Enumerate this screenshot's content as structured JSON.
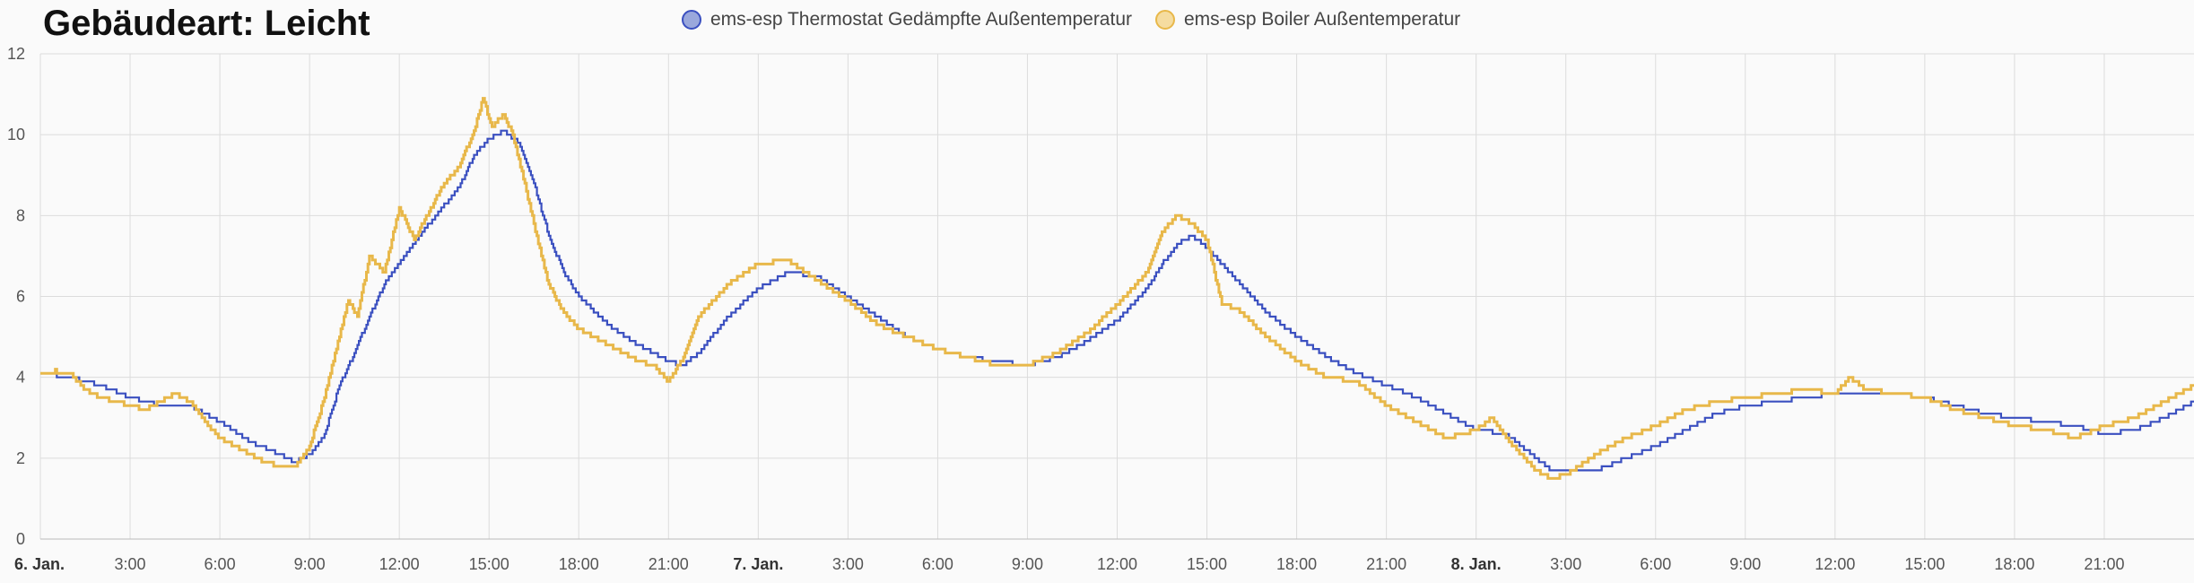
{
  "chart_data": {
    "type": "line",
    "title": "Gebäudeart: Leicht",
    "ylim": [
      0,
      12
    ],
    "y_ticks": [
      "0",
      "2",
      "4",
      "6",
      "8",
      "10",
      "12"
    ],
    "x_range_hours": [
      0,
      72
    ],
    "x_ticks": [
      {
        "hour": 0,
        "label": "6. Jan.",
        "bold": true
      },
      {
        "hour": 3,
        "label": "3:00"
      },
      {
        "hour": 6,
        "label": "6:00"
      },
      {
        "hour": 9,
        "label": "9:00"
      },
      {
        "hour": 12,
        "label": "12:00"
      },
      {
        "hour": 15,
        "label": "15:00"
      },
      {
        "hour": 18,
        "label": "18:00"
      },
      {
        "hour": 21,
        "label": "21:00"
      },
      {
        "hour": 24,
        "label": "7. Jan.",
        "bold": true
      },
      {
        "hour": 27,
        "label": "3:00"
      },
      {
        "hour": 30,
        "label": "6:00"
      },
      {
        "hour": 33,
        "label": "9:00"
      },
      {
        "hour": 36,
        "label": "12:00"
      },
      {
        "hour": 39,
        "label": "15:00"
      },
      {
        "hour": 42,
        "label": "18:00"
      },
      {
        "hour": 45,
        "label": "21:00"
      },
      {
        "hour": 48,
        "label": "8. Jan.",
        "bold": true
      },
      {
        "hour": 51,
        "label": "3:00"
      },
      {
        "hour": 54,
        "label": "6:00"
      },
      {
        "hour": 57,
        "label": "9:00"
      },
      {
        "hour": 60,
        "label": "12:00"
      },
      {
        "hour": 63,
        "label": "15:00"
      },
      {
        "hour": 66,
        "label": "18:00"
      },
      {
        "hour": 69,
        "label": "21:00"
      }
    ],
    "grid": true,
    "legend_position": "top-center",
    "series": [
      {
        "name": "ems-esp Thermostat Gedämpfte Außentemperatur",
        "color": "#3a4fc0",
        "fill": "#9aa8dc",
        "points": [
          [
            0,
            4.1
          ],
          [
            1,
            4.0
          ],
          [
            2,
            3.8
          ],
          [
            3,
            3.5
          ],
          [
            4,
            3.3
          ],
          [
            5,
            3.3
          ],
          [
            6,
            2.9
          ],
          [
            7,
            2.4
          ],
          [
            8,
            2.1
          ],
          [
            8.5,
            1.9
          ],
          [
            9,
            2.1
          ],
          [
            9.5,
            2.6
          ],
          [
            10,
            3.8
          ],
          [
            10.5,
            4.6
          ],
          [
            11,
            5.5
          ],
          [
            11.5,
            6.3
          ],
          [
            12,
            6.8
          ],
          [
            13,
            7.8
          ],
          [
            14,
            8.7
          ],
          [
            14.5,
            9.5
          ],
          [
            15,
            9.9
          ],
          [
            15.5,
            10.1
          ],
          [
            16,
            9.8
          ],
          [
            16.5,
            8.8
          ],
          [
            17,
            7.5
          ],
          [
            17.5,
            6.6
          ],
          [
            18,
            6.0
          ],
          [
            19,
            5.3
          ],
          [
            20,
            4.8
          ],
          [
            21,
            4.4
          ],
          [
            21.5,
            4.3
          ],
          [
            22,
            4.6
          ],
          [
            23,
            5.5
          ],
          [
            24,
            6.2
          ],
          [
            25,
            6.6
          ],
          [
            26,
            6.5
          ],
          [
            27,
            6.0
          ],
          [
            28,
            5.5
          ],
          [
            29,
            5.0
          ],
          [
            30,
            4.7
          ],
          [
            31,
            4.5
          ],
          [
            32,
            4.4
          ],
          [
            33,
            4.3
          ],
          [
            34,
            4.5
          ],
          [
            35,
            4.9
          ],
          [
            36,
            5.4
          ],
          [
            37,
            6.2
          ],
          [
            37.5,
            6.8
          ],
          [
            38,
            7.3
          ],
          [
            38.5,
            7.5
          ],
          [
            39,
            7.2
          ],
          [
            40,
            6.4
          ],
          [
            41,
            5.6
          ],
          [
            42,
            5.0
          ],
          [
            43,
            4.5
          ],
          [
            44,
            4.1
          ],
          [
            45,
            3.8
          ],
          [
            46,
            3.5
          ],
          [
            47,
            3.1
          ],
          [
            48,
            2.7
          ],
          [
            49,
            2.6
          ],
          [
            50,
            2.0
          ],
          [
            50.5,
            1.7
          ],
          [
            52,
            1.7
          ],
          [
            53,
            2.0
          ],
          [
            54,
            2.3
          ],
          [
            55,
            2.7
          ],
          [
            56,
            3.1
          ],
          [
            57,
            3.3
          ],
          [
            58,
            3.4
          ],
          [
            59,
            3.5
          ],
          [
            60,
            3.6
          ],
          [
            61,
            3.6
          ],
          [
            62,
            3.6
          ],
          [
            63,
            3.5
          ],
          [
            64,
            3.3
          ],
          [
            65,
            3.1
          ],
          [
            66,
            3.0
          ],
          [
            67,
            2.9
          ],
          [
            68,
            2.8
          ],
          [
            69,
            2.6
          ],
          [
            70,
            2.7
          ],
          [
            71,
            3.0
          ],
          [
            72,
            3.4
          ]
        ]
      },
      {
        "name": "ems-esp Boiler Außentemperatur",
        "color": "#e8b84a",
        "fill": "#f5dca0",
        "points": [
          [
            0,
            4.1
          ],
          [
            0.5,
            4.15
          ],
          [
            1,
            4.1
          ],
          [
            1.5,
            3.7
          ],
          [
            2,
            3.5
          ],
          [
            3,
            3.3
          ],
          [
            3.5,
            3.2
          ],
          [
            4,
            3.4
          ],
          [
            4.5,
            3.6
          ],
          [
            5,
            3.4
          ],
          [
            5.5,
            2.9
          ],
          [
            6,
            2.5
          ],
          [
            7,
            2.1
          ],
          [
            7.5,
            1.9
          ],
          [
            8,
            1.8
          ],
          [
            8.5,
            1.8
          ],
          [
            9,
            2.3
          ],
          [
            9.5,
            3.5
          ],
          [
            10,
            5.0
          ],
          [
            10.3,
            5.9
          ],
          [
            10.6,
            5.5
          ],
          [
            11,
            7.0
          ],
          [
            11.5,
            6.6
          ],
          [
            12,
            8.2
          ],
          [
            12.5,
            7.4
          ],
          [
            13,
            8.1
          ],
          [
            13.5,
            8.8
          ],
          [
            14,
            9.2
          ],
          [
            14.5,
            10.1
          ],
          [
            14.8,
            10.9
          ],
          [
            15.1,
            10.2
          ],
          [
            15.5,
            10.5
          ],
          [
            15.8,
            10.0
          ],
          [
            16,
            9.4
          ],
          [
            16.5,
            7.8
          ],
          [
            17,
            6.3
          ],
          [
            17.5,
            5.6
          ],
          [
            18,
            5.2
          ],
          [
            19,
            4.8
          ],
          [
            20,
            4.4
          ],
          [
            20.5,
            4.3
          ],
          [
            21,
            3.9
          ],
          [
            21.5,
            4.5
          ],
          [
            22,
            5.5
          ],
          [
            23,
            6.3
          ],
          [
            24,
            6.8
          ],
          [
            25,
            6.9
          ],
          [
            26,
            6.4
          ],
          [
            27,
            5.9
          ],
          [
            28,
            5.3
          ],
          [
            29,
            5.0
          ],
          [
            30,
            4.7
          ],
          [
            31,
            4.5
          ],
          [
            32,
            4.3
          ],
          [
            33,
            4.3
          ],
          [
            34,
            4.6
          ],
          [
            35,
            5.1
          ],
          [
            36,
            5.8
          ],
          [
            37,
            6.6
          ],
          [
            37.5,
            7.6
          ],
          [
            38,
            8.0
          ],
          [
            38.5,
            7.8
          ],
          [
            39,
            7.4
          ],
          [
            39.5,
            5.8
          ],
          [
            40,
            5.7
          ],
          [
            41,
            5.0
          ],
          [
            42,
            4.4
          ],
          [
            43,
            4.0
          ],
          [
            44,
            3.9
          ],
          [
            45,
            3.3
          ],
          [
            46,
            2.9
          ],
          [
            47,
            2.5
          ],
          [
            48,
            2.7
          ],
          [
            48.5,
            3.0
          ],
          [
            49,
            2.5
          ],
          [
            50,
            1.7
          ],
          [
            50.5,
            1.5
          ],
          [
            51,
            1.6
          ],
          [
            52,
            2.1
          ],
          [
            53,
            2.5
          ],
          [
            54,
            2.8
          ],
          [
            55,
            3.2
          ],
          [
            56,
            3.4
          ],
          [
            57,
            3.5
          ],
          [
            58,
            3.6
          ],
          [
            59,
            3.7
          ],
          [
            60,
            3.6
          ],
          [
            60.5,
            4.0
          ],
          [
            61,
            3.7
          ],
          [
            62,
            3.6
          ],
          [
            63,
            3.5
          ],
          [
            64,
            3.2
          ],
          [
            65,
            3.0
          ],
          [
            66,
            2.8
          ],
          [
            67,
            2.7
          ],
          [
            68,
            2.5
          ],
          [
            69,
            2.8
          ],
          [
            70,
            3.0
          ],
          [
            71,
            3.4
          ],
          [
            72,
            3.8
          ]
        ]
      }
    ]
  }
}
